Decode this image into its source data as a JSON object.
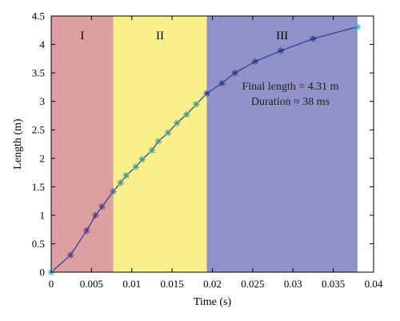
{
  "chart_data": {
    "type": "line",
    "xlabel": "Time (s)",
    "ylabel": "Length (m)",
    "xlim": [
      0,
      0.04
    ],
    "ylim": [
      0,
      4.5
    ],
    "xticks": [
      0,
      0.005,
      0.01,
      0.015,
      0.02,
      0.025,
      0.03,
      0.035,
      0.04
    ],
    "xtick_labels": [
      "0",
      "0.005",
      "0.01",
      "0.015",
      "0.02",
      "0.025",
      "0.03",
      "0.035",
      "0.04"
    ],
    "yticks": [
      0,
      0.5,
      1,
      1.5,
      2,
      2.5,
      3,
      3.5,
      4,
      4.5
    ],
    "ytick_labels": [
      "0",
      "0.5",
      "1",
      "1.5",
      "2",
      "2.5",
      "3",
      "3.5",
      "4",
      "4.5"
    ],
    "grid": false,
    "regions": [
      {
        "label": "I",
        "x_start": 0,
        "x_end": 0.0077,
        "color": "#dc9ea0"
      },
      {
        "label": "II",
        "x_start": 0.0077,
        "x_end": 0.0193,
        "color": "#f9f08c"
      },
      {
        "label": "III",
        "x_start": 0.0193,
        "x_end": 0.038,
        "color": "#9093c8"
      }
    ],
    "series": [
      {
        "line_color": "#2f3a8f",
        "x": [
          0,
          0.0024,
          0.0044,
          0.0055,
          0.0063,
          0.0077,
          0.0086,
          0.0093,
          0.0105,
          0.0113,
          0.0125,
          0.0133,
          0.0145,
          0.0156,
          0.0168,
          0.018,
          0.0193,
          0.0212,
          0.0228,
          0.0253,
          0.0285,
          0.0325,
          0.038
        ],
        "y": [
          0,
          0.3,
          0.73,
          1.0,
          1.15,
          1.42,
          1.57,
          1.7,
          1.85,
          1.98,
          2.14,
          2.3,
          2.45,
          2.62,
          2.77,
          2.95,
          3.14,
          3.32,
          3.5,
          3.7,
          3.89,
          4.1,
          4.31
        ],
        "marker_colors": [
          "#3aa7d8",
          "#4b3b8c",
          "#4b3b8c",
          "#4b3b8c",
          "#4b3b8c",
          "#4b6a8c",
          "#3a9a8a",
          "#3a9a8a",
          "#3a9a8a",
          "#3a9a8a",
          "#3a9a8a",
          "#3a9a8a",
          "#3a9a8a",
          "#3a9a8a",
          "#3a9a8a",
          "#3a9a8a",
          "#2f3a8f",
          "#2f3a8f",
          "#2f3a8f",
          "#2f3a8f",
          "#2f3a8f",
          "#2f3a8f",
          "#3aa7d8"
        ]
      }
    ],
    "annotations": [
      "Final length = 4.31 m",
      "Duration ≈ 38 ms"
    ]
  }
}
